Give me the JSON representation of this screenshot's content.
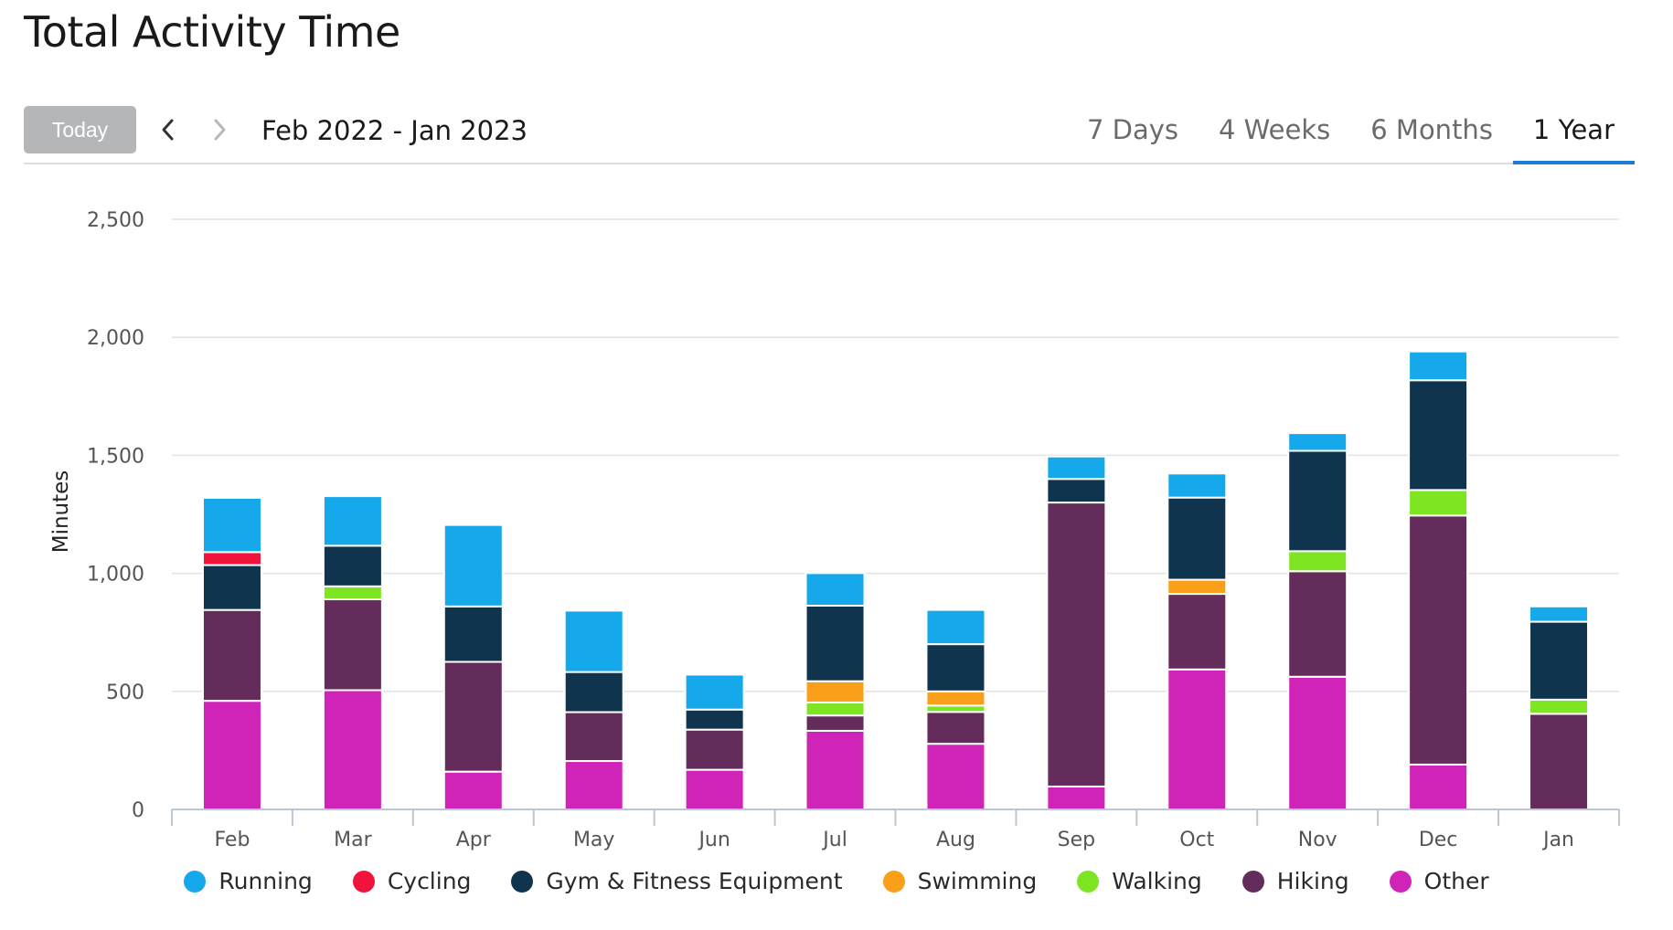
{
  "page": {
    "title": "Total Activity Time"
  },
  "toolbar": {
    "today_label": "Today",
    "prev_icon": "chevron-left-icon",
    "next_icon": "chevron-right-icon",
    "range_label": "Feb 2022 - Jan 2023",
    "tabs": [
      {
        "label": "7 Days",
        "active": false
      },
      {
        "label": "4 Weeks",
        "active": false
      },
      {
        "label": "6 Months",
        "active": false
      },
      {
        "label": "1 Year",
        "active": true
      }
    ],
    "accent_color": "#1d7bd4"
  },
  "chart_data": {
    "type": "bar",
    "stacked": true,
    "title": "",
    "xlabel": "",
    "ylabel": "Minutes",
    "ylim": [
      0,
      2500
    ],
    "yticks": [
      0,
      500,
      1000,
      1500,
      2000,
      2500
    ],
    "ytick_labels": [
      "0",
      "500",
      "1,000",
      "1,500",
      "2,000",
      "2,500"
    ],
    "grid": true,
    "legend_position": "bottom",
    "categories": [
      "Feb",
      "Mar",
      "Apr",
      "May",
      "Jun",
      "Jul",
      "Aug",
      "Sep",
      "Oct",
      "Nov",
      "Dec",
      "Jan"
    ],
    "series": [
      {
        "name": "Other",
        "color": "#d024b8",
        "values": [
          460,
          505,
          160,
          205,
          168,
          333,
          278,
          97,
          593,
          562,
          190,
          0
        ]
      },
      {
        "name": "Hiking",
        "color": "#632c5a",
        "values": [
          385,
          385,
          465,
          207,
          170,
          65,
          135,
          1203,
          320,
          447,
          1055,
          405
        ]
      },
      {
        "name": "Walking",
        "color": "#7ee523",
        "values": [
          0,
          55,
          0,
          0,
          0,
          55,
          27,
          0,
          0,
          85,
          108,
          60
        ]
      },
      {
        "name": "Swimming",
        "color": "#f99f1a",
        "values": [
          0,
          0,
          0,
          0,
          0,
          90,
          60,
          0,
          60,
          0,
          0,
          0
        ]
      },
      {
        "name": "Gym & Fitness Equipment",
        "color": "#10344e",
        "values": [
          190,
          172,
          235,
          170,
          85,
          320,
          200,
          100,
          348,
          425,
          465,
          330
        ]
      },
      {
        "name": "Cycling",
        "color": "#f0143c",
        "values": [
          55,
          0,
          0,
          0,
          0,
          0,
          0,
          0,
          0,
          0,
          0,
          0
        ]
      },
      {
        "name": "Running",
        "color": "#15a8ea",
        "values": [
          230,
          210,
          345,
          260,
          148,
          138,
          145,
          95,
          102,
          75,
          122,
          65
        ]
      }
    ],
    "legend_order": [
      "Running",
      "Cycling",
      "Gym & Fitness Equipment",
      "Swimming",
      "Walking",
      "Hiking",
      "Other"
    ]
  }
}
